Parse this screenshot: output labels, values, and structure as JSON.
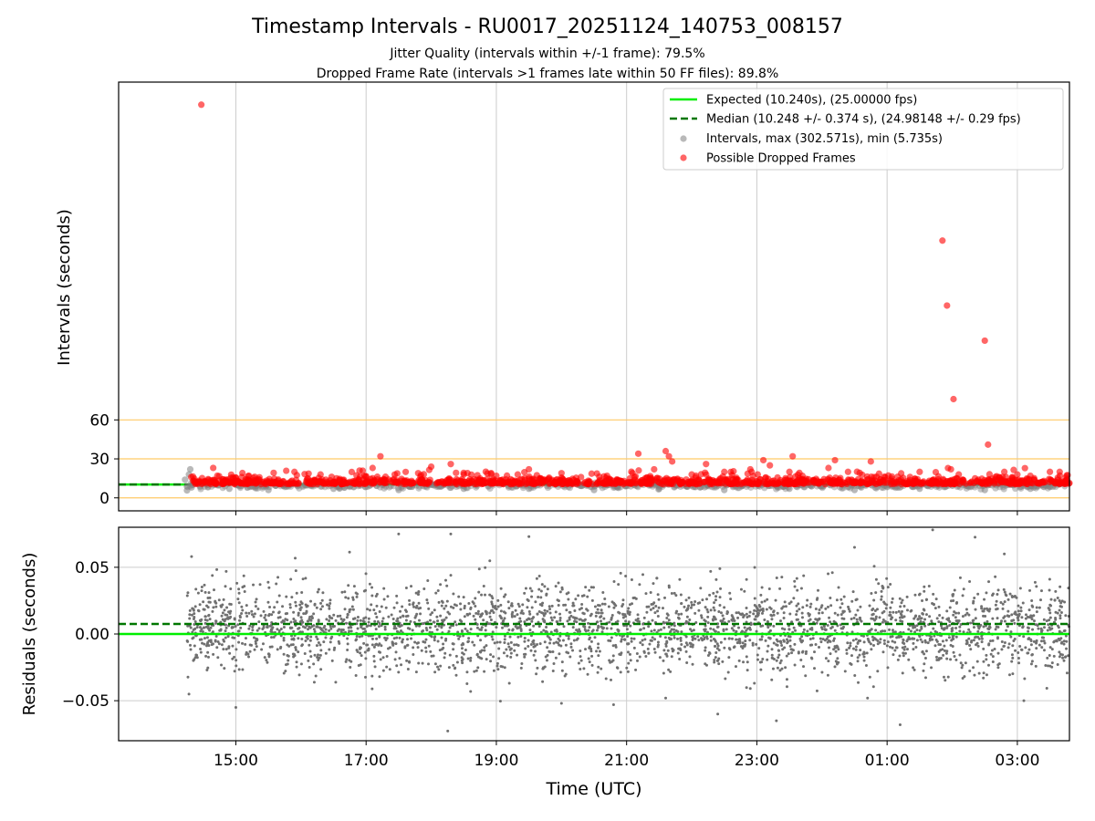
{
  "figure": {
    "title": "Timestamp Intervals - RU0017_20251124_140753_008157",
    "subtitle_1": "Jitter Quality (intervals within +/-1 frame): 79.5%",
    "subtitle_2": "Dropped Frame Rate (intervals >1 frames late within 50 FF files): 89.8%",
    "xlabel": "Time (UTC)"
  },
  "colors": {
    "expected": "#00ee00",
    "median": "#007700",
    "intervals": "#808080",
    "dropped": "#ff0000",
    "threshold": "#ffc966",
    "grid": "#cccccc"
  },
  "chart_data": [
    {
      "type": "scatter",
      "ylabel": "Intervals (seconds)",
      "x_units": "hours since 14:00 UTC",
      "xlim": [
        -0.8,
        13.8
      ],
      "ylim": [
        -10,
        320
      ],
      "yticks": [
        0,
        30,
        60
      ],
      "ytick_labels": [
        "0",
        "30",
        "60"
      ],
      "xticks": [
        1,
        3,
        5,
        7,
        9,
        11,
        13
      ],
      "xtick_labels": [
        "15:00",
        "17:00",
        "19:00",
        "21:00",
        "23:00",
        "01:00",
        "03:00"
      ],
      "threshold_lines": [
        0,
        30,
        60
      ],
      "grid": "vertical",
      "legend_position": "upper right",
      "legend": [
        "Expected (10.240s), (25.00000 fps)",
        "Median (10.248 +/- 0.374 s), (24.98148 +/- 0.29 fps)",
        "Intervals, max (302.571s), min (5.735s)",
        "Possible Dropped Frames"
      ],
      "expected_value": 10.24,
      "median_value": 10.248,
      "series": [
        {
          "name": "Intervals, max (302.571s), min (5.735s)",
          "style": "gray",
          "points": [
            [
              0.25,
              5.7
            ],
            [
              0.3,
              22
            ],
            [
              0.28,
              18
            ],
            [
              0.35,
              12
            ],
            [
              0.32,
              8
            ],
            [
              0.22,
              14
            ],
            [
              0.9,
              7
            ],
            [
              1.5,
              6
            ],
            [
              2.5,
              7
            ],
            [
              3.5,
              6
            ],
            [
              4.5,
              7
            ],
            [
              5.5,
              7
            ],
            [
              6.5,
              6
            ],
            [
              7.5,
              7
            ],
            [
              8.5,
              6
            ],
            [
              9.5,
              7
            ],
            [
              10.5,
              6
            ],
            [
              11.5,
              7
            ],
            [
              12.5,
              6
            ],
            [
              13.2,
              7
            ]
          ]
        },
        {
          "name": "Possible Dropped Frames",
          "style": "red",
          "points": [
            [
              0.47,
              302.6
            ],
            [
              11.85,
              198
            ],
            [
              11.92,
              148
            ],
            [
              12.5,
              121
            ],
            [
              12.02,
              76
            ],
            [
              12.55,
              41
            ],
            [
              1.2,
              17
            ],
            [
              1.9,
              20
            ],
            [
              2.3,
              18
            ],
            [
              2.9,
              21
            ],
            [
              3.22,
              32
            ],
            [
              3.1,
              23
            ],
            [
              3.8,
              19
            ],
            [
              4.0,
              24
            ],
            [
              4.3,
              26
            ],
            [
              4.5,
              18
            ],
            [
              5.0,
              17
            ],
            [
              5.5,
              22
            ],
            [
              6.0,
              19
            ],
            [
              6.3,
              16
            ],
            [
              6.7,
              17
            ],
            [
              7.18,
              34
            ],
            [
              7.6,
              36
            ],
            [
              7.65,
              32
            ],
            [
              7.7,
              28
            ],
            [
              8.0,
              18
            ],
            [
              8.5,
              20
            ],
            [
              8.9,
              22
            ],
            [
              9.1,
              29
            ],
            [
              9.2,
              25
            ],
            [
              9.5,
              20
            ],
            [
              9.7,
              17
            ],
            [
              10.1,
              23
            ],
            [
              10.2,
              29
            ],
            [
              10.4,
              20
            ],
            [
              10.8,
              16
            ],
            [
              11.5,
              20
            ],
            [
              11.98,
              22
            ],
            [
              12.1,
              18
            ],
            [
              12.35,
              15
            ],
            [
              12.8,
              20
            ],
            [
              13.0,
              18
            ],
            [
              13.2,
              17
            ],
            [
              13.5,
              20
            ],
            [
              13.65,
              20
            ],
            [
              10.75,
              28
            ],
            [
              9.55,
              32
            ],
            [
              8.22,
              26
            ],
            [
              8.92,
              20
            ]
          ]
        }
      ]
    },
    {
      "type": "scatter",
      "ylabel": "Residuals (seconds)",
      "xlim": [
        -0.8,
        13.8
      ],
      "ylim": [
        -0.08,
        0.08
      ],
      "yticks": [
        -0.05,
        0,
        0.05
      ],
      "ytick_labels": [
        "−0.05",
        "0.00",
        "0.05"
      ],
      "xticks": [
        1,
        3,
        5,
        7,
        9,
        11,
        13
      ],
      "xtick_labels": [
        "15:00",
        "17:00",
        "19:00",
        "21:00",
        "23:00",
        "01:00",
        "03:00"
      ],
      "grid": "both",
      "expected_residual": 0,
      "median_residual": 0.0075,
      "series": [
        {
          "name": "Residuals",
          "style": "gray",
          "x_range": [
            0.25,
            13.8
          ],
          "mean": 0.004,
          "std": 0.016,
          "count": 3000,
          "points": [
            [
              1.0,
              -0.055
            ],
            [
              4.3,
              0.075
            ],
            [
              3.5,
              0.075
            ],
            [
              9.3,
              -0.065
            ],
            [
              5.5,
              0.073
            ],
            [
              11.2,
              -0.068
            ],
            [
              11.7,
              0.078
            ],
            [
              13.1,
              -0.05
            ],
            [
              10.7,
              -0.048
            ],
            [
              6.0,
              -0.052
            ],
            [
              8.4,
              -0.06
            ],
            [
              0.28,
              -0.045
            ],
            [
              0.32,
              0.058
            ],
            [
              12.8,
              0.06
            ],
            [
              10.5,
              0.065
            ],
            [
              7.6,
              -0.048
            ],
            [
              6.8,
              -0.053
            ]
          ]
        }
      ]
    }
  ]
}
